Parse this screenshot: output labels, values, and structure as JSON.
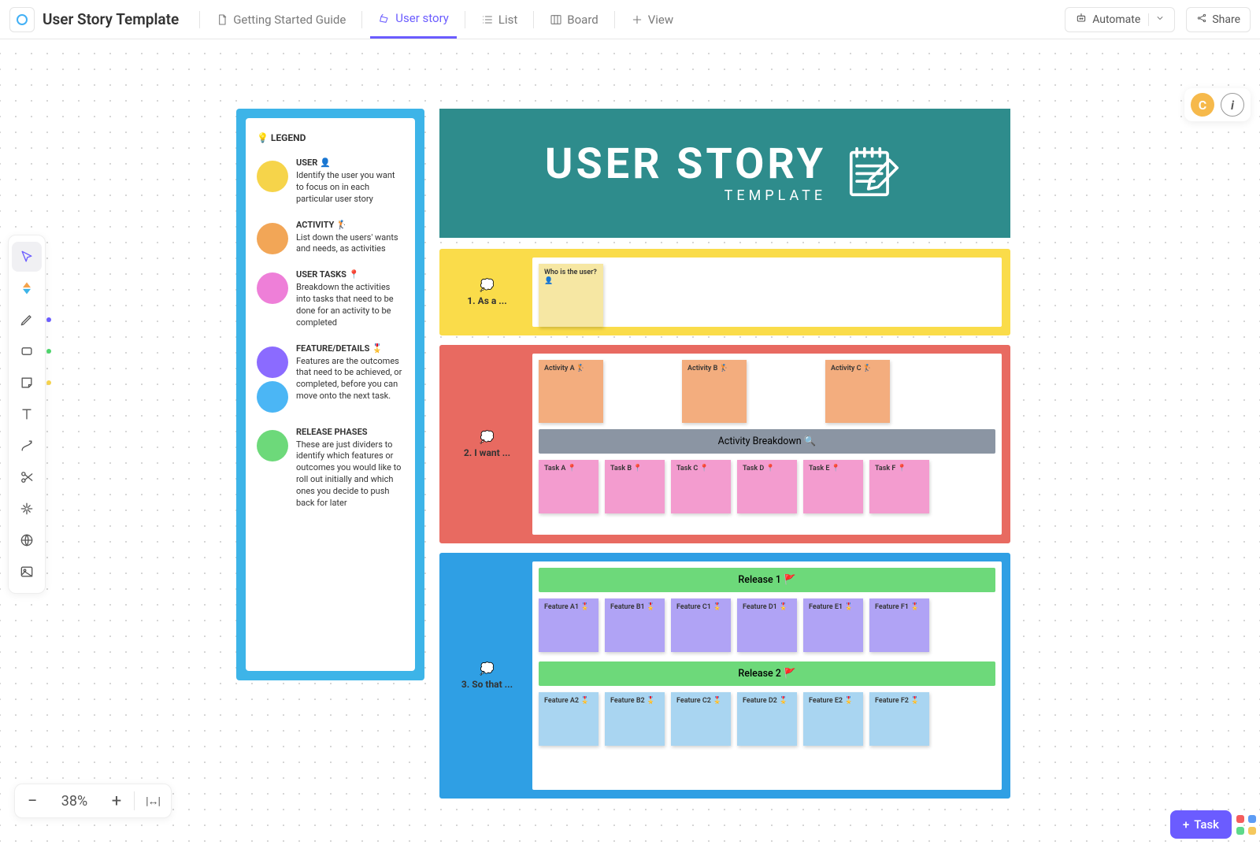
{
  "doc_title": "User Story Template",
  "topbar": {
    "tabs": [
      {
        "label": "Getting Started Guide",
        "icon": "doc-icon"
      },
      {
        "label": "User story",
        "icon": "userstory-icon",
        "active": true
      },
      {
        "label": "List",
        "icon": "list-icon"
      },
      {
        "label": "Board",
        "icon": "board-icon"
      },
      {
        "label": "View",
        "icon": "plus-icon"
      }
    ],
    "automate_label": "Automate",
    "share_label": "Share"
  },
  "avatar_initial": "C",
  "zoom_value": "38%",
  "task_button": "Task",
  "legend": {
    "title": "💡 LEGEND",
    "items": [
      {
        "swatches": [
          "#f6d44a"
        ],
        "heading": "USER 👤",
        "desc": "Identify the user you want to focus on in each particular user story"
      },
      {
        "swatches": [
          "#f2a657"
        ],
        "heading": "ACTIVITY 🏌️",
        "desc": "List down the users' wants and needs, as activities"
      },
      {
        "swatches": [
          "#ee7fd8"
        ],
        "heading": "USER TASKS 📍",
        "desc": "Breakdown the activities into tasks that need to be done for an activity to be completed"
      },
      {
        "swatches": [
          "#8b6bff",
          "#4bb6f5"
        ],
        "heading": "FEATURE/DETAILS 🎖️",
        "desc": "Features are the outcomes that need to be achieved, or completed, before you can move onto the next task."
      },
      {
        "swatches": [
          "#6dd97a"
        ],
        "heading": "RELEASE PHASES",
        "desc": "These are just dividers to identify which features or outcomes you would like to roll out initially and which ones you decide to push back for later"
      }
    ]
  },
  "banner": {
    "title": "USER STORY",
    "subtitle": "TEMPLATE"
  },
  "sections": {
    "s1": {
      "label": "1.  As a ...",
      "bg": "#fadc4a",
      "border": "#fadc4a",
      "user_note": {
        "line1": "Who is the user?",
        "line2": "👤",
        "color": "#f6e7a3"
      }
    },
    "s2": {
      "label": "2.  I want ...",
      "bg": "#e86a61",
      "border": "#e86a61",
      "activities": [
        {
          "label": "Activity A 🏌️"
        },
        {
          "label": "Activity B 🏌️"
        },
        {
          "label": "Activity C 🏌️"
        }
      ],
      "activity_color": "#f3ad7e",
      "band": "Activity Breakdown 🔍",
      "tasks": [
        {
          "label": "Task A 📍"
        },
        {
          "label": "Task B 📍"
        },
        {
          "label": "Task C 📍"
        },
        {
          "label": "Task D 📍"
        },
        {
          "label": "Task E 📍"
        },
        {
          "label": "Task F 📍"
        }
      ],
      "task_color": "#f39ccf"
    },
    "s3": {
      "label": "3.  So that ...",
      "bg": "#2f9fe4",
      "border": "#2f9fe4",
      "release1": "Release 1 🚩",
      "features1": [
        {
          "label": "Feature A1 🎖️"
        },
        {
          "label": "Feature B1 🎖️"
        },
        {
          "label": "Feature C1 🎖️"
        },
        {
          "label": "Feature D1 🎖️"
        },
        {
          "label": "Feature E1 🎖️"
        },
        {
          "label": "Feature F1 🎖️"
        }
      ],
      "feature1_color": "#b0a3f5",
      "release2": "Release 2 🚩",
      "features2": [
        {
          "label": "Feature A2 🎖️"
        },
        {
          "label": "Feature B2 🎖️"
        },
        {
          "label": "Feature C2 🎖️"
        },
        {
          "label": "Feature D2 🎖️"
        },
        {
          "label": "Feature E2 🎖️"
        },
        {
          "label": "Feature F2 🎖️"
        }
      ],
      "feature2_color": "#a9d5f1"
    }
  },
  "apps_colors": [
    "#f55d5d",
    "#5d9cf5",
    "#5dd98a",
    "#f5c85d"
  ]
}
